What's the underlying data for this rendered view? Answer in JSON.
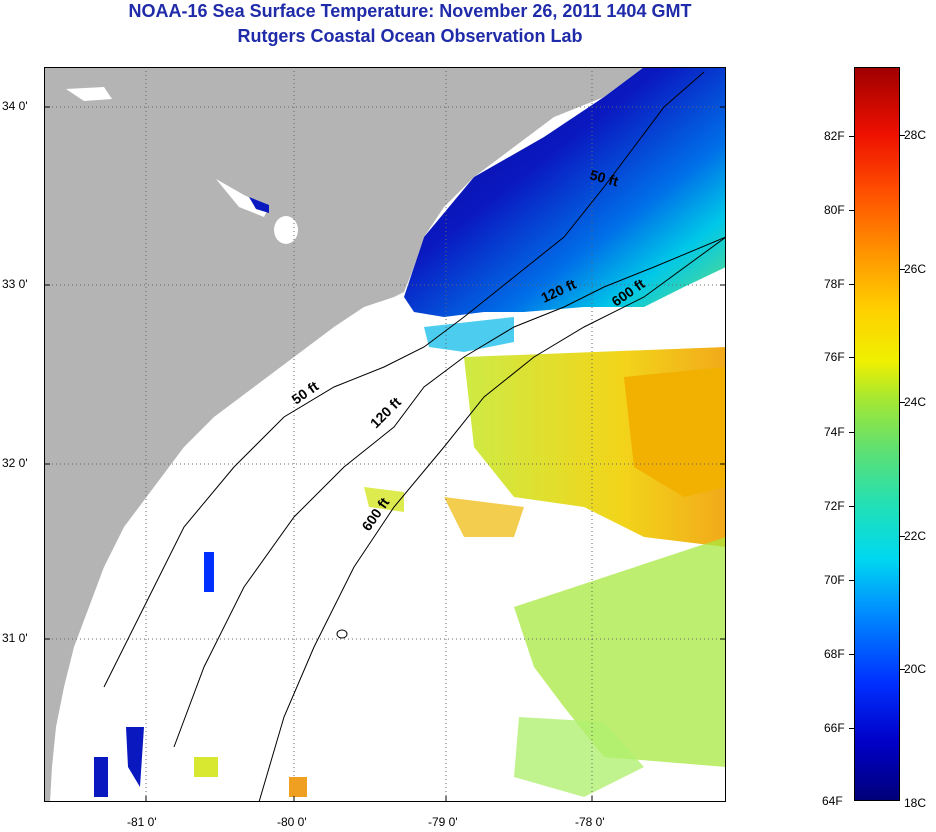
{
  "title": {
    "line1": "NOAA-16 Sea Surface Temperature:  November 26, 2011 1404 GMT",
    "line2": "Rutgers Coastal Ocean Observation Lab"
  },
  "map": {
    "lat_labels": [
      "34 0'",
      "33 0'",
      "32 0'",
      "31 0'"
    ],
    "lon_labels": [
      "-81 0'",
      "-80 0'",
      "-79 0'",
      "-78 0'"
    ],
    "isobath_labels": [
      "50 ft",
      "120 ft",
      "600 ft",
      "50 ft",
      "120 ft",
      "600 ft"
    ],
    "colors": {
      "land": "#b4b4b4",
      "cloud": "#ffffff",
      "cold": "#0a10a0",
      "warm": "#f5b800"
    }
  },
  "colorbar": {
    "fahrenheit": [
      "82F",
      "80F",
      "78F",
      "76F",
      "74F",
      "72F",
      "70F",
      "68F",
      "66F",
      "64F"
    ],
    "celsius": [
      "28C",
      "26C",
      "24C",
      "22C",
      "20C",
      "18C"
    ]
  }
}
